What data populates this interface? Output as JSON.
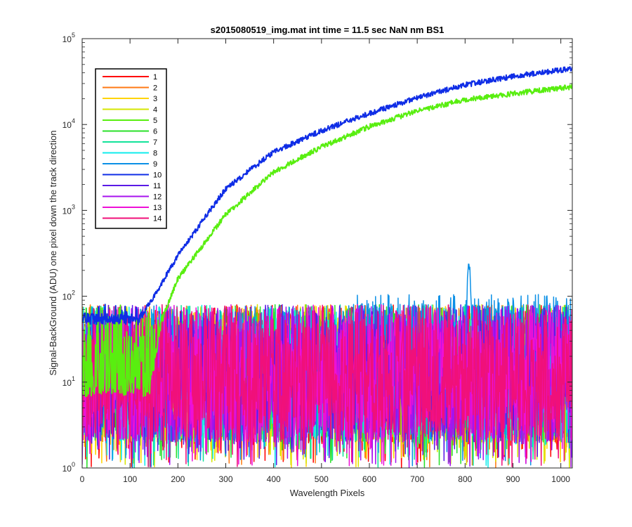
{
  "chart_data": {
    "type": "line",
    "title": "s2015080519_img.mat int time = 11.5 sec  NaN nm BS1",
    "xlabel": "Wavelength Pixels",
    "ylabel": "Signal-BackGround (ADU) one pixel down the track direction",
    "xlim": [
      0,
      1024
    ],
    "ylim": [
      1,
      100000
    ],
    "yscale": "log",
    "x_ticks": [
      "0",
      "100",
      "200",
      "300",
      "400",
      "500",
      "600",
      "700",
      "800",
      "900",
      "1000"
    ],
    "y_ticks": [
      {
        "base": "10",
        "exp": "0"
      },
      {
        "base": "10",
        "exp": "1"
      },
      {
        "base": "10",
        "exp": "2"
      },
      {
        "base": "10",
        "exp": "3"
      },
      {
        "base": "10",
        "exp": "4"
      },
      {
        "base": "10",
        "exp": "5"
      }
    ],
    "grid": false,
    "legend_position": "top-left",
    "noise_floor_note_values": {
      "mean": 20,
      "max": 80,
      "min": 1
    },
    "series": [
      {
        "name": "1",
        "color": "#ff0000",
        "kind": "noise"
      },
      {
        "name": "2",
        "color": "#ff7a14",
        "kind": "noise"
      },
      {
        "name": "3",
        "color": "#ffd400",
        "kind": "noise"
      },
      {
        "name": "4",
        "color": "#d6e600",
        "kind": "noise"
      },
      {
        "name": "5",
        "color": "#59ee10",
        "kind": "rising",
        "anchors": [
          [
            140,
            8
          ],
          [
            165,
            50
          ],
          [
            200,
            160
          ],
          [
            300,
            900
          ],
          [
            400,
            2800
          ],
          [
            500,
            5500
          ],
          [
            600,
            9500
          ],
          [
            700,
            14500
          ],
          [
            800,
            19500
          ],
          [
            900,
            23000
          ],
          [
            1024,
            27500
          ]
        ]
      },
      {
        "name": "6",
        "color": "#2ae02a",
        "kind": "noise"
      },
      {
        "name": "7",
        "color": "#12e39a",
        "kind": "noise"
      },
      {
        "name": "8",
        "color": "#10ecec",
        "kind": "noise"
      },
      {
        "name": "9",
        "color": "#0b90e6",
        "kind": "noise",
        "peak": {
          "x": 808,
          "value": 250
        }
      },
      {
        "name": "10",
        "color": "#0f2de6",
        "kind": "rising",
        "anchors": [
          [
            120,
            55
          ],
          [
            150,
            100
          ],
          [
            200,
            300
          ],
          [
            300,
            1800
          ],
          [
            400,
            4800
          ],
          [
            500,
            8500
          ],
          [
            600,
            13500
          ],
          [
            700,
            20500
          ],
          [
            800,
            29000
          ],
          [
            900,
            36500
          ],
          [
            1024,
            45000
          ]
        ]
      },
      {
        "name": "11",
        "color": "#5a1ae6",
        "kind": "noise"
      },
      {
        "name": "12",
        "color": "#a713ee",
        "kind": "noise"
      },
      {
        "name": "13",
        "color": "#ee10d6",
        "kind": "noise"
      },
      {
        "name": "14",
        "color": "#f0107a",
        "kind": "noise"
      }
    ]
  }
}
